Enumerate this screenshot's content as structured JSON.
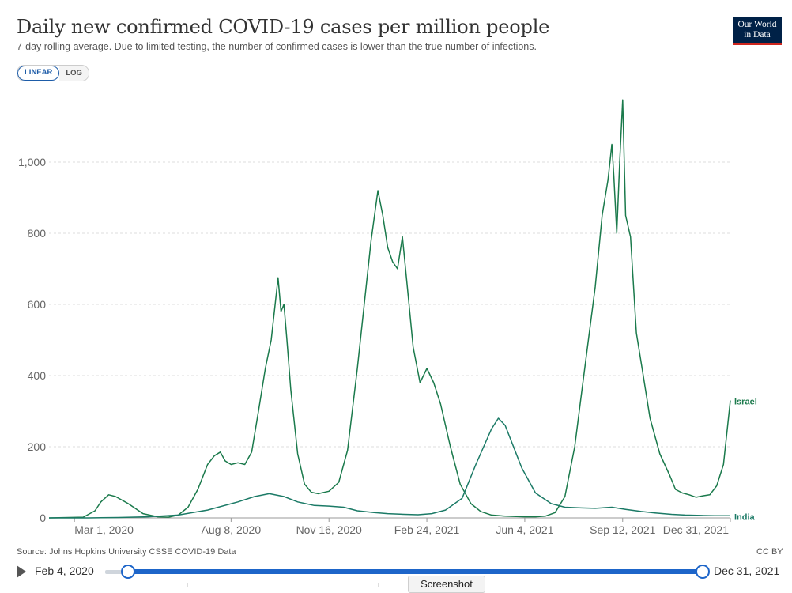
{
  "header": {
    "title": "Daily new confirmed COVID-19 cases per million people",
    "subtitle": "7-day rolling average. Due to limited testing, the number of confirmed cases is lower than the true number of infections.",
    "logo_line1": "Our World",
    "logo_line2": "in Data"
  },
  "scale_toggle": {
    "linear_label": "LINEAR",
    "log_label": "LOG",
    "selected": "LINEAR"
  },
  "footer": {
    "source": "Source: Johns Hopkins University CSSE COVID-19 Data",
    "license": "CC BY"
  },
  "timeline": {
    "start_label": "Feb 4, 2020",
    "end_label": "Dec 31, 2021",
    "screenshot_label": "Screenshot"
  },
  "colors": {
    "israel": "#1b7a4c",
    "india": "#1b7a66",
    "grid": "#dddddd",
    "accent": "#1d65c9",
    "logo_bg": "#002147",
    "logo_accent": "#ce261e"
  },
  "chart_data": {
    "type": "line",
    "title": "Daily new confirmed COVID-19 cases per million people",
    "ylim": [
      0,
      1200
    ],
    "y_ticks": [
      0,
      200,
      400,
      600,
      800,
      1000
    ],
    "y_tick_labels": [
      "0",
      "200",
      "400",
      "600",
      "800",
      "1,000"
    ],
    "x_ticks": [
      "2020-03-01",
      "2020-08-08",
      "2020-11-16",
      "2021-02-24",
      "2021-06-04",
      "2021-09-12",
      "2021-12-31"
    ],
    "x_tick_labels": [
      "Mar 1, 2020",
      "Aug 8, 2020",
      "Nov 16, 2020",
      "Feb 24, 2021",
      "Jun 4, 2021",
      "Sep 12, 2021",
      "Dec 31, 2021"
    ],
    "xlim": [
      "2020-02-04",
      "2021-12-31"
    ],
    "grid": true,
    "series": [
      {
        "name": "Israel",
        "x": [
          "2020-02-04",
          "2020-03-10",
          "2020-03-22",
          "2020-03-28",
          "2020-04-05",
          "2020-04-12",
          "2020-04-25",
          "2020-05-10",
          "2020-05-25",
          "2020-06-05",
          "2020-06-15",
          "2020-06-25",
          "2020-07-05",
          "2020-07-15",
          "2020-07-22",
          "2020-07-28",
          "2020-08-02",
          "2020-08-08",
          "2020-08-15",
          "2020-08-22",
          "2020-08-29",
          "2020-09-05",
          "2020-09-12",
          "2020-09-18",
          "2020-09-22",
          "2020-09-25",
          "2020-09-28",
          "2020-10-01",
          "2020-10-04",
          "2020-10-08",
          "2020-10-15",
          "2020-10-22",
          "2020-10-29",
          "2020-11-05",
          "2020-11-16",
          "2020-11-26",
          "2020-12-05",
          "2020-12-15",
          "2020-12-22",
          "2020-12-29",
          "2021-01-05",
          "2021-01-10",
          "2021-01-15",
          "2021-01-20",
          "2021-01-25",
          "2021-01-30",
          "2021-02-04",
          "2021-02-10",
          "2021-02-17",
          "2021-02-24",
          "2021-03-03",
          "2021-03-10",
          "2021-03-20",
          "2021-03-30",
          "2021-04-10",
          "2021-04-20",
          "2021-05-01",
          "2021-05-15",
          "2021-06-04",
          "2021-06-15",
          "2021-06-25",
          "2021-07-05",
          "2021-07-15",
          "2021-07-25",
          "2021-08-01",
          "2021-08-08",
          "2021-08-15",
          "2021-08-22",
          "2021-08-28",
          "2021-09-01",
          "2021-09-03",
          "2021-09-06",
          "2021-09-09",
          "2021-09-12",
          "2021-09-15",
          "2021-09-20",
          "2021-09-26",
          "2021-10-03",
          "2021-10-10",
          "2021-10-20",
          "2021-10-30",
          "2021-11-05",
          "2021-11-12",
          "2021-11-19",
          "2021-11-26",
          "2021-12-03",
          "2021-12-10",
          "2021-12-17",
          "2021-12-24",
          "2021-12-31"
        ],
        "values": [
          0,
          2,
          20,
          45,
          65,
          60,
          40,
          12,
          3,
          2,
          8,
          30,
          80,
          150,
          175,
          185,
          160,
          150,
          155,
          150,
          185,
          300,
          420,
          500,
          600,
          675,
          580,
          600,
          500,
          360,
          180,
          95,
          72,
          68,
          75,
          100,
          190,
          420,
          600,
          780,
          920,
          850,
          760,
          720,
          700,
          790,
          650,
          480,
          380,
          420,
          380,
          320,
          200,
          95,
          40,
          18,
          8,
          5,
          3,
          3,
          5,
          15,
          60,
          200,
          350,
          500,
          650,
          850,
          950,
          1050,
          960,
          800,
          1000,
          1175,
          850,
          790,
          520,
          400,
          280,
          180,
          120,
          80,
          70,
          65,
          58,
          62,
          65,
          90,
          150,
          330
        ]
      },
      {
        "name": "India",
        "x": [
          "2020-02-04",
          "2020-03-15",
          "2020-04-15",
          "2020-05-15",
          "2020-06-15",
          "2020-07-15",
          "2020-08-15",
          "2020-09-01",
          "2020-09-16",
          "2020-10-01",
          "2020-10-15",
          "2020-11-01",
          "2020-11-16",
          "2020-12-01",
          "2020-12-15",
          "2021-01-01",
          "2021-01-15",
          "2021-02-01",
          "2021-02-15",
          "2021-03-01",
          "2021-03-15",
          "2021-04-01",
          "2021-04-15",
          "2021-05-01",
          "2021-05-08",
          "2021-05-15",
          "2021-06-01",
          "2021-06-15",
          "2021-07-01",
          "2021-07-15",
          "2021-08-01",
          "2021-08-15",
          "2021-09-01",
          "2021-09-15",
          "2021-10-01",
          "2021-10-15",
          "2021-11-01",
          "2021-11-15",
          "2021-12-01",
          "2021-12-15",
          "2021-12-31"
        ],
        "values": [
          0,
          0,
          1,
          3,
          8,
          22,
          45,
          60,
          68,
          60,
          45,
          35,
          33,
          30,
          20,
          15,
          12,
          10,
          9,
          12,
          22,
          55,
          150,
          250,
          280,
          260,
          140,
          70,
          40,
          30,
          28,
          27,
          30,
          24,
          18,
          14,
          10,
          8,
          7,
          6,
          6
        ]
      }
    ]
  }
}
